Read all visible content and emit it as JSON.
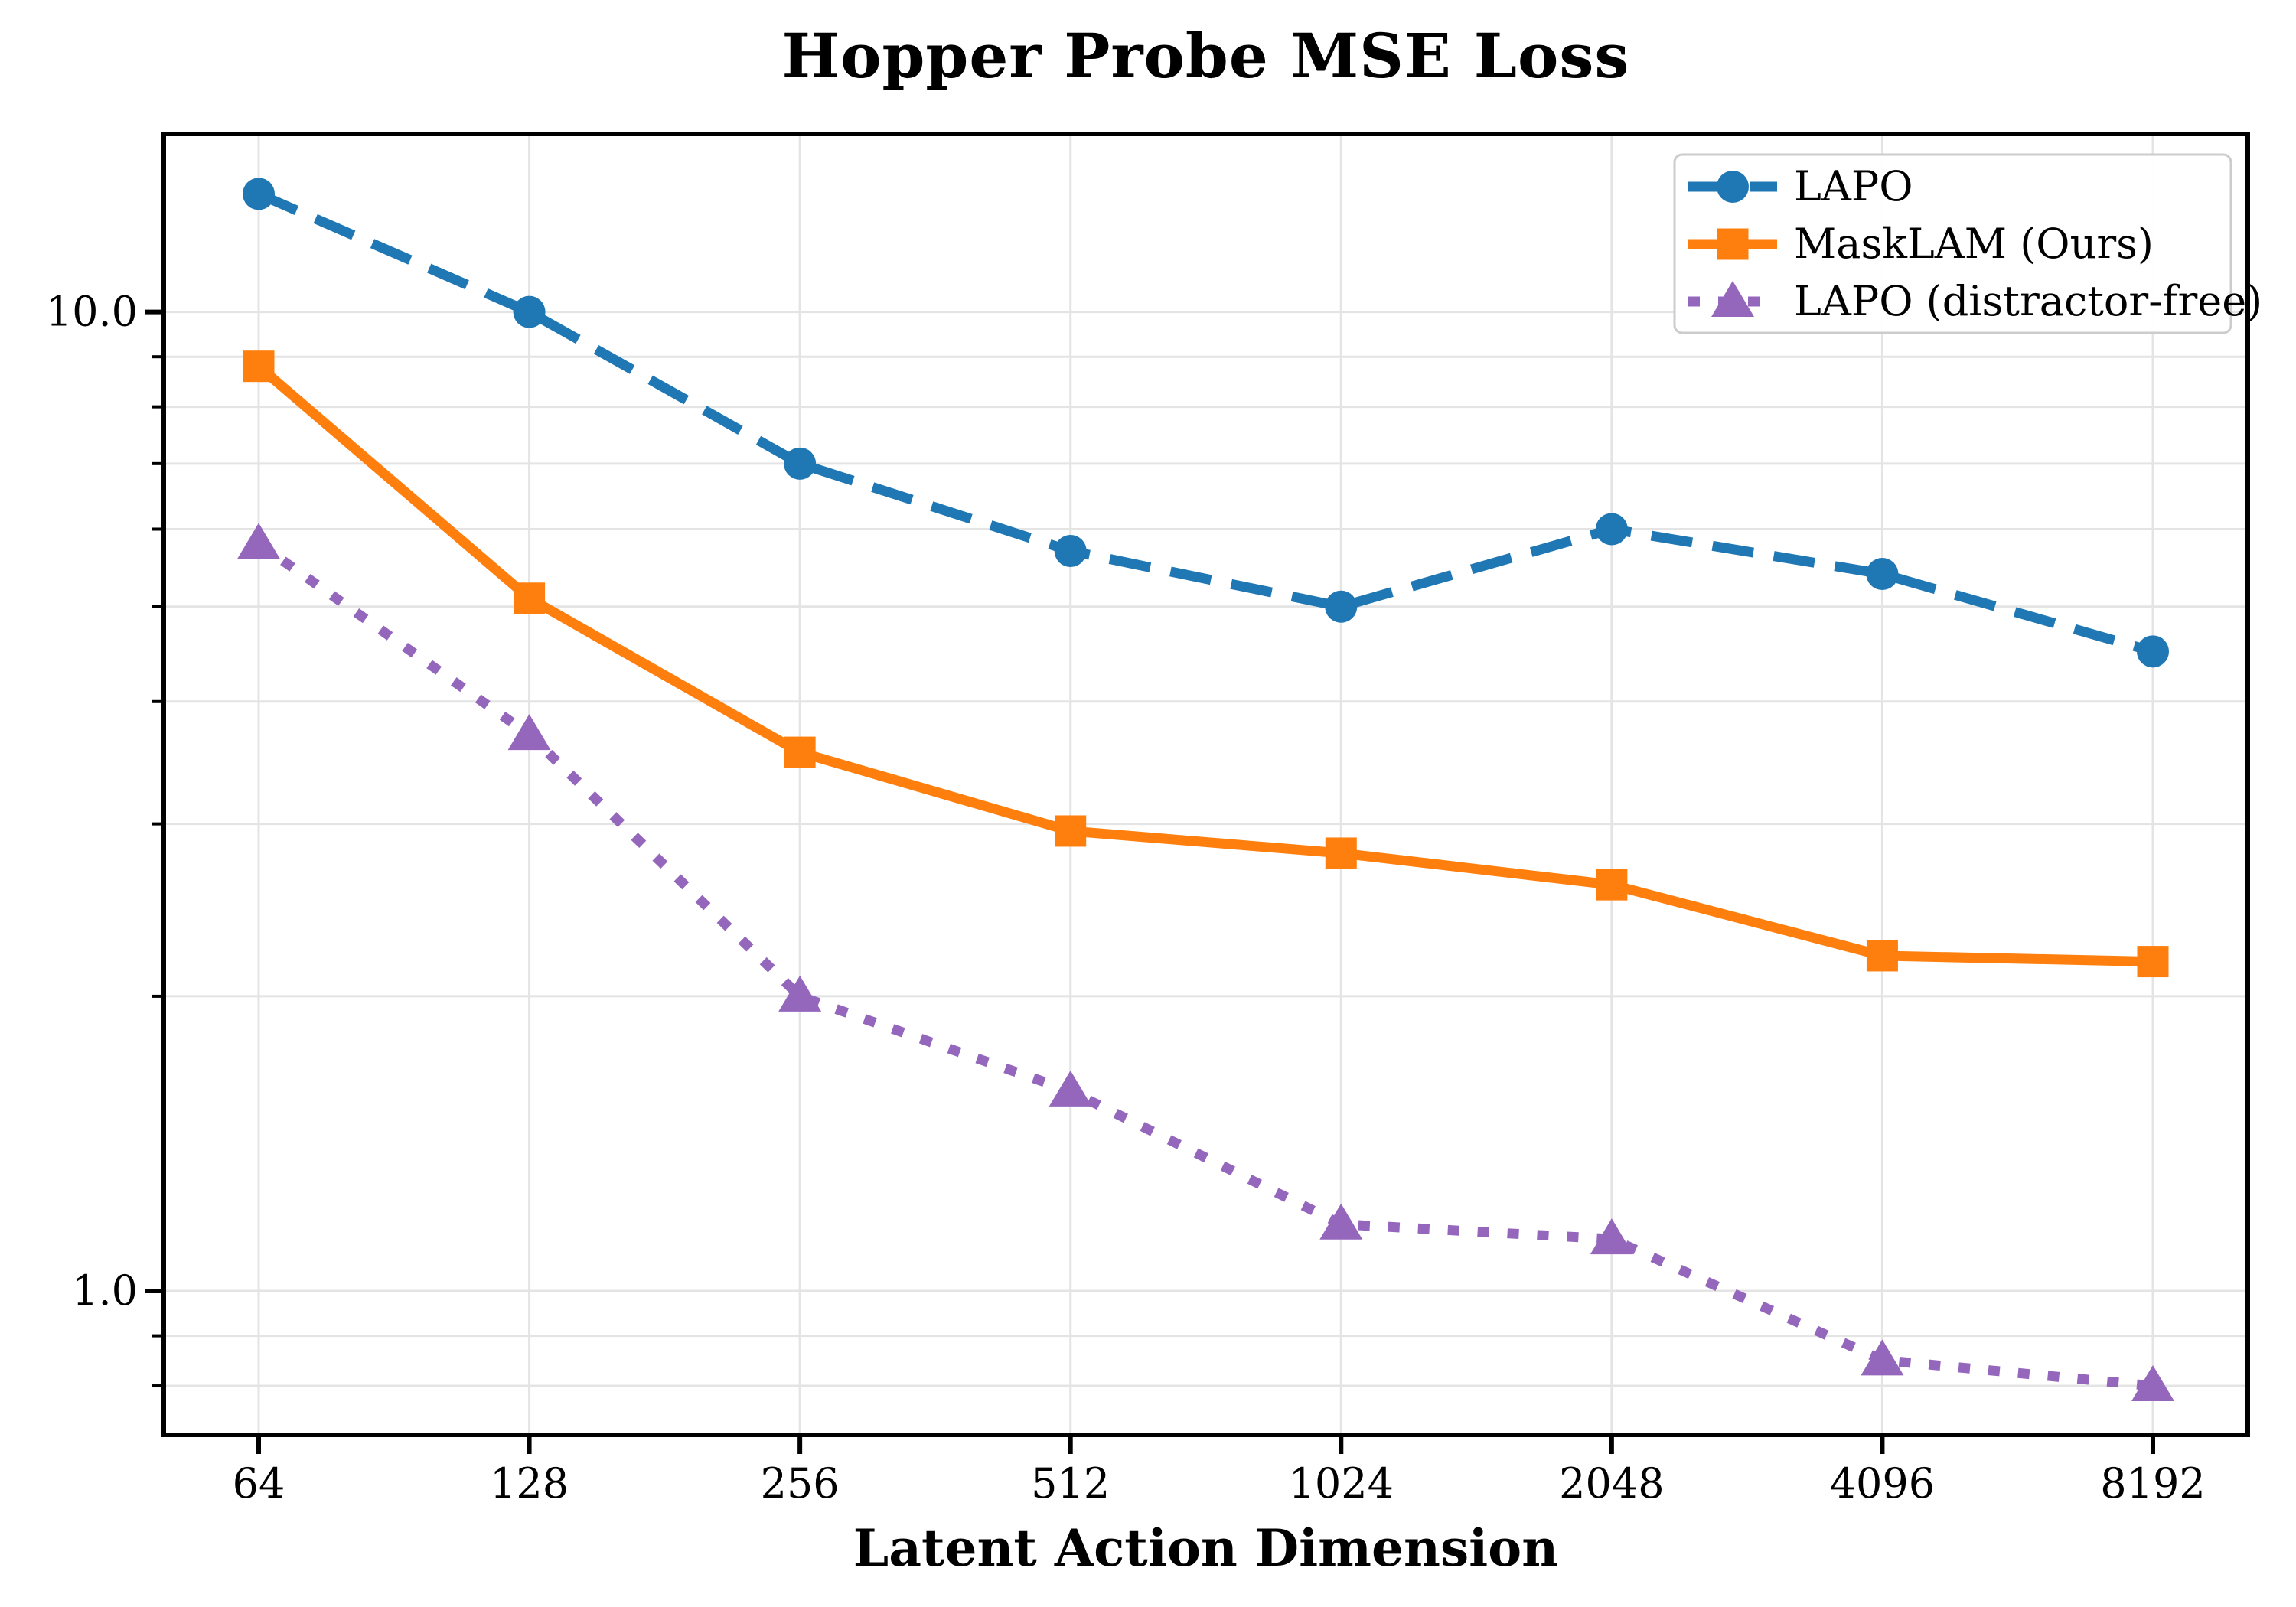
{
  "figure": {
    "title": "Hopper Probe MSE Loss"
  },
  "chart_data": {
    "type": "line",
    "title": "Hopper Probe MSE Loss",
    "xlabel": "Latent Action Dimension",
    "ylabel": "",
    "x_scale": "log2-categorical",
    "y_scale": "log10",
    "grid": true,
    "legend_position": "upper-right",
    "categories": [
      "64",
      "128",
      "256",
      "512",
      "1024",
      "2048",
      "4096",
      "8192"
    ],
    "y_major_ticks": [
      {
        "value": 10,
        "label": "10.0"
      },
      {
        "value": 1,
        "label": "1.0"
      }
    ],
    "y_minor_gridlines": [
      0.8,
      0.9,
      2,
      3,
      4,
      5,
      6,
      7,
      8,
      9
    ],
    "ylim": [
      0.713,
      15.2
    ],
    "series": [
      {
        "name": "LAPO",
        "color": "#1f77b4",
        "line_style": "dashed",
        "marker": "circle",
        "values": [
          13.2,
          10.0,
          7.0,
          5.7,
          5.0,
          6.0,
          5.4,
          4.5
        ]
      },
      {
        "name": "MaskLAM (Ours)",
        "color": "#ff7f0e",
        "line_style": "solid",
        "marker": "square",
        "values": [
          8.8,
          5.1,
          3.55,
          2.95,
          2.8,
          2.6,
          2.2,
          2.17
        ]
      },
      {
        "name": "LAPO (distractor-free)",
        "color": "#9467bd",
        "line_style": "dotted",
        "marker": "triangle",
        "values": [
          5.8,
          3.7,
          2.0,
          1.6,
          1.17,
          1.13,
          0.85,
          0.8
        ]
      }
    ],
    "colors": {
      "gridline": "#e4e4e4",
      "spine": "#000000",
      "legend_border": "#cccccc",
      "legend_background": "#ffffff"
    }
  }
}
